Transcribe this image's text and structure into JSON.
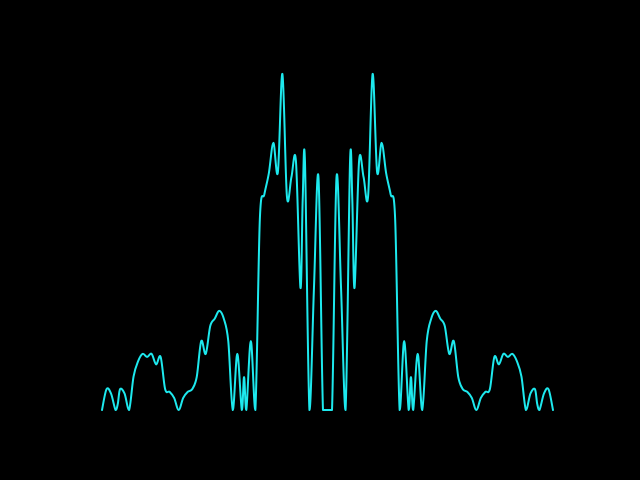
{
  "chart_data": {
    "type": "line",
    "title": "",
    "xlabel": "",
    "ylabel": "",
    "xlim": [
      -1,
      1
    ],
    "ylim": [
      0,
      1
    ],
    "grid": false,
    "axes_visible": false,
    "background": "#000000",
    "series": [
      {
        "color": "#1de9ee",
        "x": [
          -1.0,
          -0.98,
          -0.96,
          -0.94,
          -0.93,
          -0.92,
          -0.9,
          -0.88,
          -0.86,
          -0.84,
          -0.82,
          -0.8,
          -0.78,
          -0.76,
          -0.74,
          -0.72,
          -0.7,
          -0.68,
          -0.66,
          -0.64,
          -0.62,
          -0.6,
          -0.58,
          -0.56,
          -0.54,
          -0.52,
          -0.5,
          -0.48,
          -0.46,
          -0.44,
          -0.42,
          -0.4,
          -0.38,
          -0.37,
          -0.36,
          -0.34,
          -0.32,
          -0.3,
          -0.28,
          -0.26,
          -0.24,
          -0.22,
          -0.2,
          -0.18,
          -0.16,
          -0.14,
          -0.12,
          -0.11,
          -0.1,
          -0.08,
          -0.06,
          -0.04,
          -0.02,
          0.0,
          0.02,
          0.04,
          0.06,
          0.08,
          0.1,
          0.11,
          0.12,
          0.14,
          0.16,
          0.18,
          0.2,
          0.22,
          0.24,
          0.26,
          0.28,
          0.3,
          0.32,
          0.34,
          0.36,
          0.37,
          0.38,
          0.4,
          0.42,
          0.44,
          0.46,
          0.48,
          0.5,
          0.52,
          0.54,
          0.56,
          0.58,
          0.6,
          0.62,
          0.64,
          0.66,
          0.68,
          0.7,
          0.72,
          0.74,
          0.76,
          0.78,
          0.8,
          0.82,
          0.84,
          0.86,
          0.88,
          0.9,
          0.92,
          0.93,
          0.94,
          0.96,
          0.98,
          1.0
        ],
        "y": [
          0.0,
          0.062,
          0.049,
          0.0,
          0.018,
          0.062,
          0.049,
          0.0,
          0.1,
          0.145,
          0.167,
          0.158,
          0.167,
          0.136,
          0.158,
          0.062,
          0.054,
          0.036,
          0.0,
          0.036,
          0.054,
          0.062,
          0.098,
          0.205,
          0.167,
          0.25,
          0.272,
          0.295,
          0.272,
          0.205,
          0.0,
          0.167,
          0.0,
          0.098,
          0.0,
          0.205,
          0.0,
          0.568,
          0.642,
          0.705,
          0.795,
          0.708,
          1.0,
          0.636,
          0.693,
          0.741,
          0.364,
          0.625,
          0.741,
          0.0,
          0.364,
          0.693,
          0.0,
          0.0,
          0.0,
          0.693,
          0.364,
          0.0,
          0.741,
          0.625,
          0.364,
          0.741,
          0.693,
          0.636,
          1.0,
          0.708,
          0.795,
          0.705,
          0.642,
          0.568,
          0.0,
          0.205,
          0.0,
          0.098,
          0.0,
          0.167,
          0.0,
          0.205,
          0.272,
          0.295,
          0.272,
          0.25,
          0.167,
          0.205,
          0.098,
          0.062,
          0.054,
          0.036,
          0.0,
          0.036,
          0.054,
          0.062,
          0.158,
          0.136,
          0.167,
          0.158,
          0.167,
          0.145,
          0.1,
          0.0,
          0.049,
          0.062,
          0.018,
          0.0,
          0.049,
          0.062,
          0.0
        ]
      }
    ]
  }
}
